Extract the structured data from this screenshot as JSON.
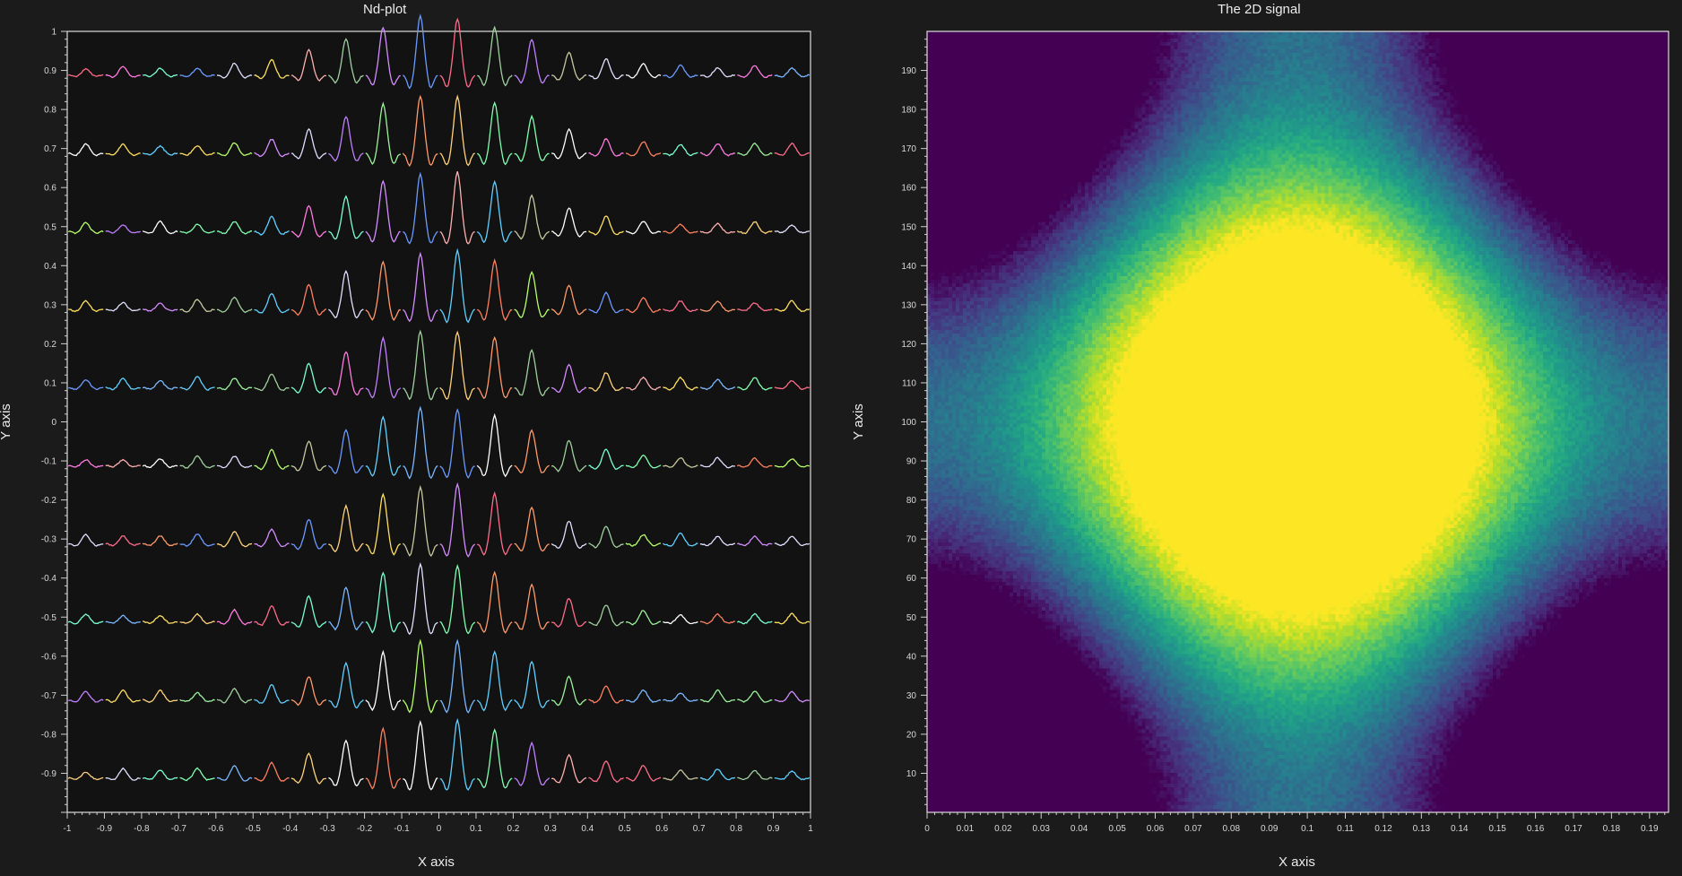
{
  "chart_data": [
    {
      "type": "line",
      "title": "Nd-plot",
      "xlabel": "X axis",
      "ylabel": "Y axis",
      "xlim": [
        -1,
        1
      ],
      "ylim": [
        -1,
        1
      ],
      "x_ticks": [
        "-1",
        "-0.9",
        "-0.8",
        "-0.7",
        "-0.6",
        "-0.5",
        "-0.4",
        "-0.3",
        "-0.2",
        "-0.1",
        "0",
        "0.1",
        "0.2",
        "0.3",
        "0.4",
        "0.5",
        "0.6",
        "0.7",
        "0.8",
        "0.9",
        "1"
      ],
      "y_ticks": [
        "-0.9",
        "-0.8",
        "-0.7",
        "-0.6",
        "-0.5",
        "-0.4",
        "-0.3",
        "-0.2",
        "-0.1",
        "0",
        "0.1",
        "0.2",
        "0.3",
        "0.4",
        "0.5",
        "0.6",
        "0.7",
        "0.8",
        "0.9",
        "1"
      ],
      "rows": [
        -0.9,
        -0.7,
        -0.5,
        -0.3,
        -0.1,
        0.1,
        0.3,
        0.5,
        0.7,
        0.9
      ],
      "cells_x": [
        -0.95,
        -0.85,
        -0.75,
        -0.65,
        -0.55,
        -0.45,
        -0.35,
        -0.25,
        -0.15,
        -0.05,
        0.05,
        0.15,
        0.25,
        0.35,
        0.45,
        0.55,
        0.65,
        0.75,
        0.85,
        0.95
      ],
      "grid": false,
      "legend": "none"
    },
    {
      "type": "heatmap",
      "title": "The 2D signal",
      "xlabel": "X axis",
      "ylabel": "Y axis",
      "xlim": [
        0,
        0.195
      ],
      "ylim": [
        0,
        200
      ],
      "x_ticks": [
        "0",
        "0.01",
        "0.02",
        "0.03",
        "0.04",
        "0.05",
        "0.06",
        "0.07",
        "0.08",
        "0.09",
        "0.1",
        "0.11",
        "0.12",
        "0.13",
        "0.14",
        "0.15",
        "0.16",
        "0.17",
        "0.18",
        "0.19"
      ],
      "y_ticks": [
        "10",
        "20",
        "30",
        "40",
        "50",
        "60",
        "70",
        "80",
        "90",
        "100",
        "110",
        "120",
        "130",
        "140",
        "150",
        "160",
        "170",
        "180",
        "190"
      ],
      "colormap": "viridis",
      "grid": false,
      "legend": "none"
    }
  ]
}
